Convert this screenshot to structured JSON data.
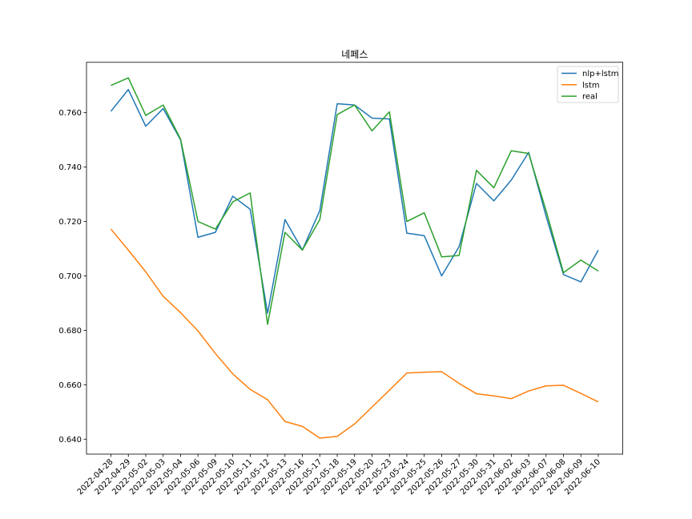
{
  "chart_data": {
    "type": "line",
    "title": "네페스",
    "xlabel": "",
    "ylabel": "",
    "categories": [
      "2022-04-28",
      "2022-04-29",
      "2022-05-02",
      "2022-05-03",
      "2022-05-04",
      "2022-05-06",
      "2022-05-09",
      "2022-05-10",
      "2022-05-11",
      "2022-05-12",
      "2022-05-13",
      "2022-05-16",
      "2022-05-17",
      "2022-05-18",
      "2022-05-19",
      "2022-05-20",
      "2022-05-23",
      "2022-05-24",
      "2022-05-25",
      "2022-05-26",
      "2022-05-27",
      "2022-05-30",
      "2022-05-31",
      "2022-06-02",
      "2022-06-03",
      "2022-06-07",
      "2022-06-08",
      "2022-06-09",
      "2022-06-10"
    ],
    "ylim": [
      0.6345,
      0.7785
    ],
    "yticks": [
      0.64,
      0.66,
      0.68,
      0.7,
      0.72,
      0.74,
      0.76
    ],
    "ytick_labels": [
      "0.640",
      "0.660",
      "0.680",
      "0.700",
      "0.720",
      "0.740",
      "0.760"
    ],
    "grid": false,
    "legend_position": "top-right",
    "series": [
      {
        "name": "nlp+lstm",
        "color": "#1f77b4",
        "values": [
          0.7605,
          0.7685,
          0.755,
          0.7615,
          0.75,
          0.7142,
          0.716,
          0.7293,
          0.7245,
          0.6863,
          0.7207,
          0.7095,
          0.724,
          0.7633,
          0.7628,
          0.758,
          0.7577,
          0.7157,
          0.7148,
          0.7,
          0.7107,
          0.734,
          0.7276,
          0.7352,
          0.7454,
          0.722,
          0.7005,
          0.6978,
          0.7095
        ]
      },
      {
        "name": "lstm",
        "color": "#ff7f0e",
        "values": [
          0.7172,
          0.7095,
          0.7015,
          0.6925,
          0.6865,
          0.6798,
          0.6715,
          0.664,
          0.6583,
          0.6545,
          0.6465,
          0.6447,
          0.6404,
          0.641,
          0.6456,
          0.6518,
          0.658,
          0.6643,
          0.6646,
          0.6648,
          0.6605,
          0.6567,
          0.6559,
          0.6549,
          0.6577,
          0.6596,
          0.6598,
          0.6568,
          0.6537
        ]
      },
      {
        "name": "real",
        "color": "#2ca02c",
        "values": [
          0.77,
          0.7728,
          0.759,
          0.7628,
          0.7503,
          0.72,
          0.7172,
          0.7272,
          0.7305,
          0.6822,
          0.716,
          0.7095,
          0.7207,
          0.7593,
          0.7628,
          0.7533,
          0.7603,
          0.72,
          0.7232,
          0.707,
          0.7075,
          0.7388,
          0.7324,
          0.746,
          0.745,
          0.724,
          0.7012,
          0.7058,
          0.7018
        ]
      }
    ]
  }
}
